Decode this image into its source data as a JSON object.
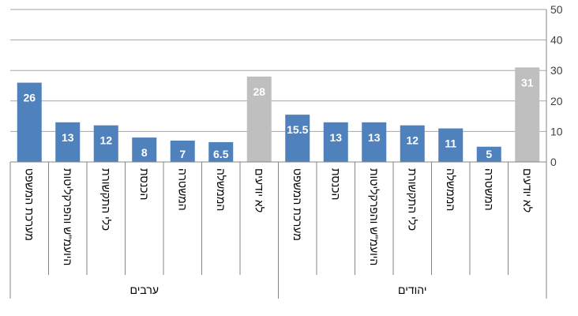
{
  "chart_data": {
    "type": "bar",
    "groups": [
      {
        "name": "ערבים",
        "categories": [
          "מערכת המשפט",
          "היועמ\"ש והפרקליטות",
          "כלי התקשורת",
          "הכנסת",
          "המשטרה",
          "הממשלה",
          "לא יודעים"
        ],
        "values": [
          26,
          13,
          12,
          8,
          7,
          6.5,
          28
        ],
        "value_labels": [
          "26",
          "13",
          "12",
          "8",
          "7",
          "6.5",
          "28"
        ]
      },
      {
        "name": "יהודים",
        "categories": [
          "מערכת המשפט",
          "הכנסת",
          "היועמ\"ש והפרקליטות",
          "כלי התקשורת",
          "הממשלה",
          "המשטרה",
          "לא יודעים"
        ],
        "values": [
          15.5,
          13,
          13,
          12,
          11,
          5,
          31
        ],
        "value_labels": [
          "15.5",
          "13",
          "13",
          "12",
          "11",
          "5",
          "31"
        ]
      }
    ],
    "y_ticks": [
      "0",
      "10",
      "20",
      "30",
      "40",
      "50"
    ],
    "ylim": [
      0,
      50
    ],
    "y_axis_side": "right",
    "grid": true,
    "legend": "none",
    "colors": {
      "bar": "#4f81bd",
      "bar_unknown": "#bfbfbf",
      "grid": "#a6a6a6",
      "axis": "#868686",
      "label_inside": "#ffffff"
    }
  }
}
